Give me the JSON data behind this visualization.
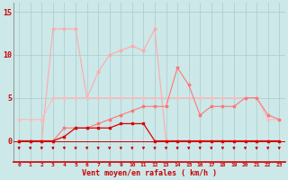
{
  "x": [
    0,
    1,
    2,
    3,
    4,
    5,
    6,
    7,
    8,
    9,
    10,
    11,
    12,
    13,
    14,
    15,
    16,
    17,
    18,
    19,
    20,
    21,
    22,
    23
  ],
  "line1": [
    0,
    0,
    0,
    13,
    13,
    13,
    5,
    8,
    10,
    10.5,
    11,
    10.5,
    13,
    0,
    0,
    0,
    0,
    0,
    0,
    0,
    0,
    0,
    0,
    0
  ],
  "line2": [
    2.5,
    2.5,
    2.5,
    5,
    5,
    5,
    5,
    5,
    5,
    5,
    5,
    5,
    5,
    5,
    5,
    5,
    5,
    5,
    5,
    5,
    5,
    5,
    2.5,
    2.5
  ],
  "line3": [
    0,
    0,
    0,
    0,
    1.5,
    1.5,
    1.5,
    2,
    2.5,
    3,
    3.5,
    4,
    4,
    4,
    8.5,
    6.5,
    3,
    4,
    4,
    4,
    5,
    5,
    3,
    2.5
  ],
  "line4": [
    0,
    0,
    0,
    0,
    0.5,
    1.5,
    1.5,
    1.5,
    1.5,
    2,
    2,
    2,
    0,
    0,
    0,
    0,
    0,
    0,
    0,
    0,
    0,
    0,
    0,
    0
  ],
  "bg_color": "#cce8e9",
  "grid_color": "#aacccc",
  "line1_color": "#ffaaaa",
  "line2_color": "#ffbbbb",
  "line3_color": "#ff7777",
  "line4_color": "#dd0000",
  "arrow_color": "#cc0000",
  "xlabel": "Vent moyen/en rafales ( km/h )",
  "ylim": [
    -2.5,
    16
  ],
  "yticks": [
    0,
    5,
    10,
    15
  ],
  "xlim": [
    -0.5,
    23.5
  ]
}
